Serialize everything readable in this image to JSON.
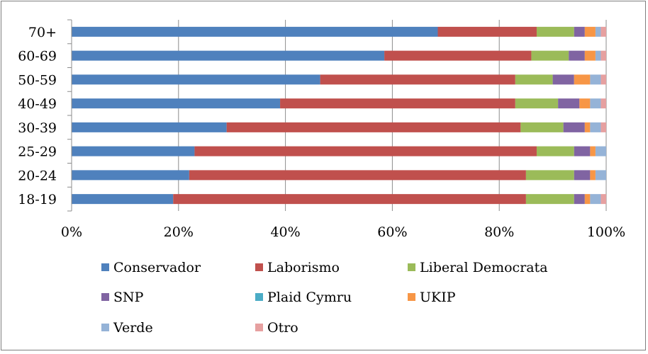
{
  "chart_data": {
    "type": "bar",
    "orientation": "horizontal",
    "stacked": "percent",
    "categories": [
      "18-19",
      "20-24",
      "25-29",
      "30-39",
      "40-49",
      "50-59",
      "60-69",
      "70+"
    ],
    "series": [
      {
        "name": "Conservador",
        "color": "#4f81bd",
        "values": [
          19,
          22,
          23,
          29,
          39,
          46.5,
          58.5,
          68.5
        ]
      },
      {
        "name": "Laborismo",
        "color": "#c0504d",
        "values": [
          66,
          63,
          64,
          55,
          44,
          36.5,
          27.5,
          18.5
        ]
      },
      {
        "name": "Liberal Democrata",
        "color": "#9bbb59",
        "values": [
          9,
          9,
          7,
          8,
          8,
          7,
          7,
          7
        ]
      },
      {
        "name": "SNP",
        "color": "#8064a2",
        "values": [
          2,
          3,
          3,
          4,
          4,
          4,
          3,
          2
        ]
      },
      {
        "name": "Plaid Cymru",
        "color": "#4bacc6",
        "values": [
          0,
          0,
          0,
          0,
          0,
          0,
          0,
          0
        ]
      },
      {
        "name": "UKIP",
        "color": "#f79646",
        "values": [
          1,
          1,
          1,
          1,
          2,
          3,
          2,
          2
        ]
      },
      {
        "name": "Verde",
        "color": "#95b3d7",
        "values": [
          2,
          2,
          2,
          2,
          2,
          2,
          1,
          1
        ]
      },
      {
        "name": "Otro",
        "color": "#e6a0a0",
        "values": [
          1,
          0,
          0,
          1,
          1,
          1,
          1,
          1
        ]
      }
    ],
    "xlim": [
      0,
      100
    ],
    "x_ticks": [
      "0%",
      "20%",
      "40%",
      "60%",
      "80%",
      "100%"
    ],
    "grid": "vertical",
    "legend": "bottom"
  }
}
